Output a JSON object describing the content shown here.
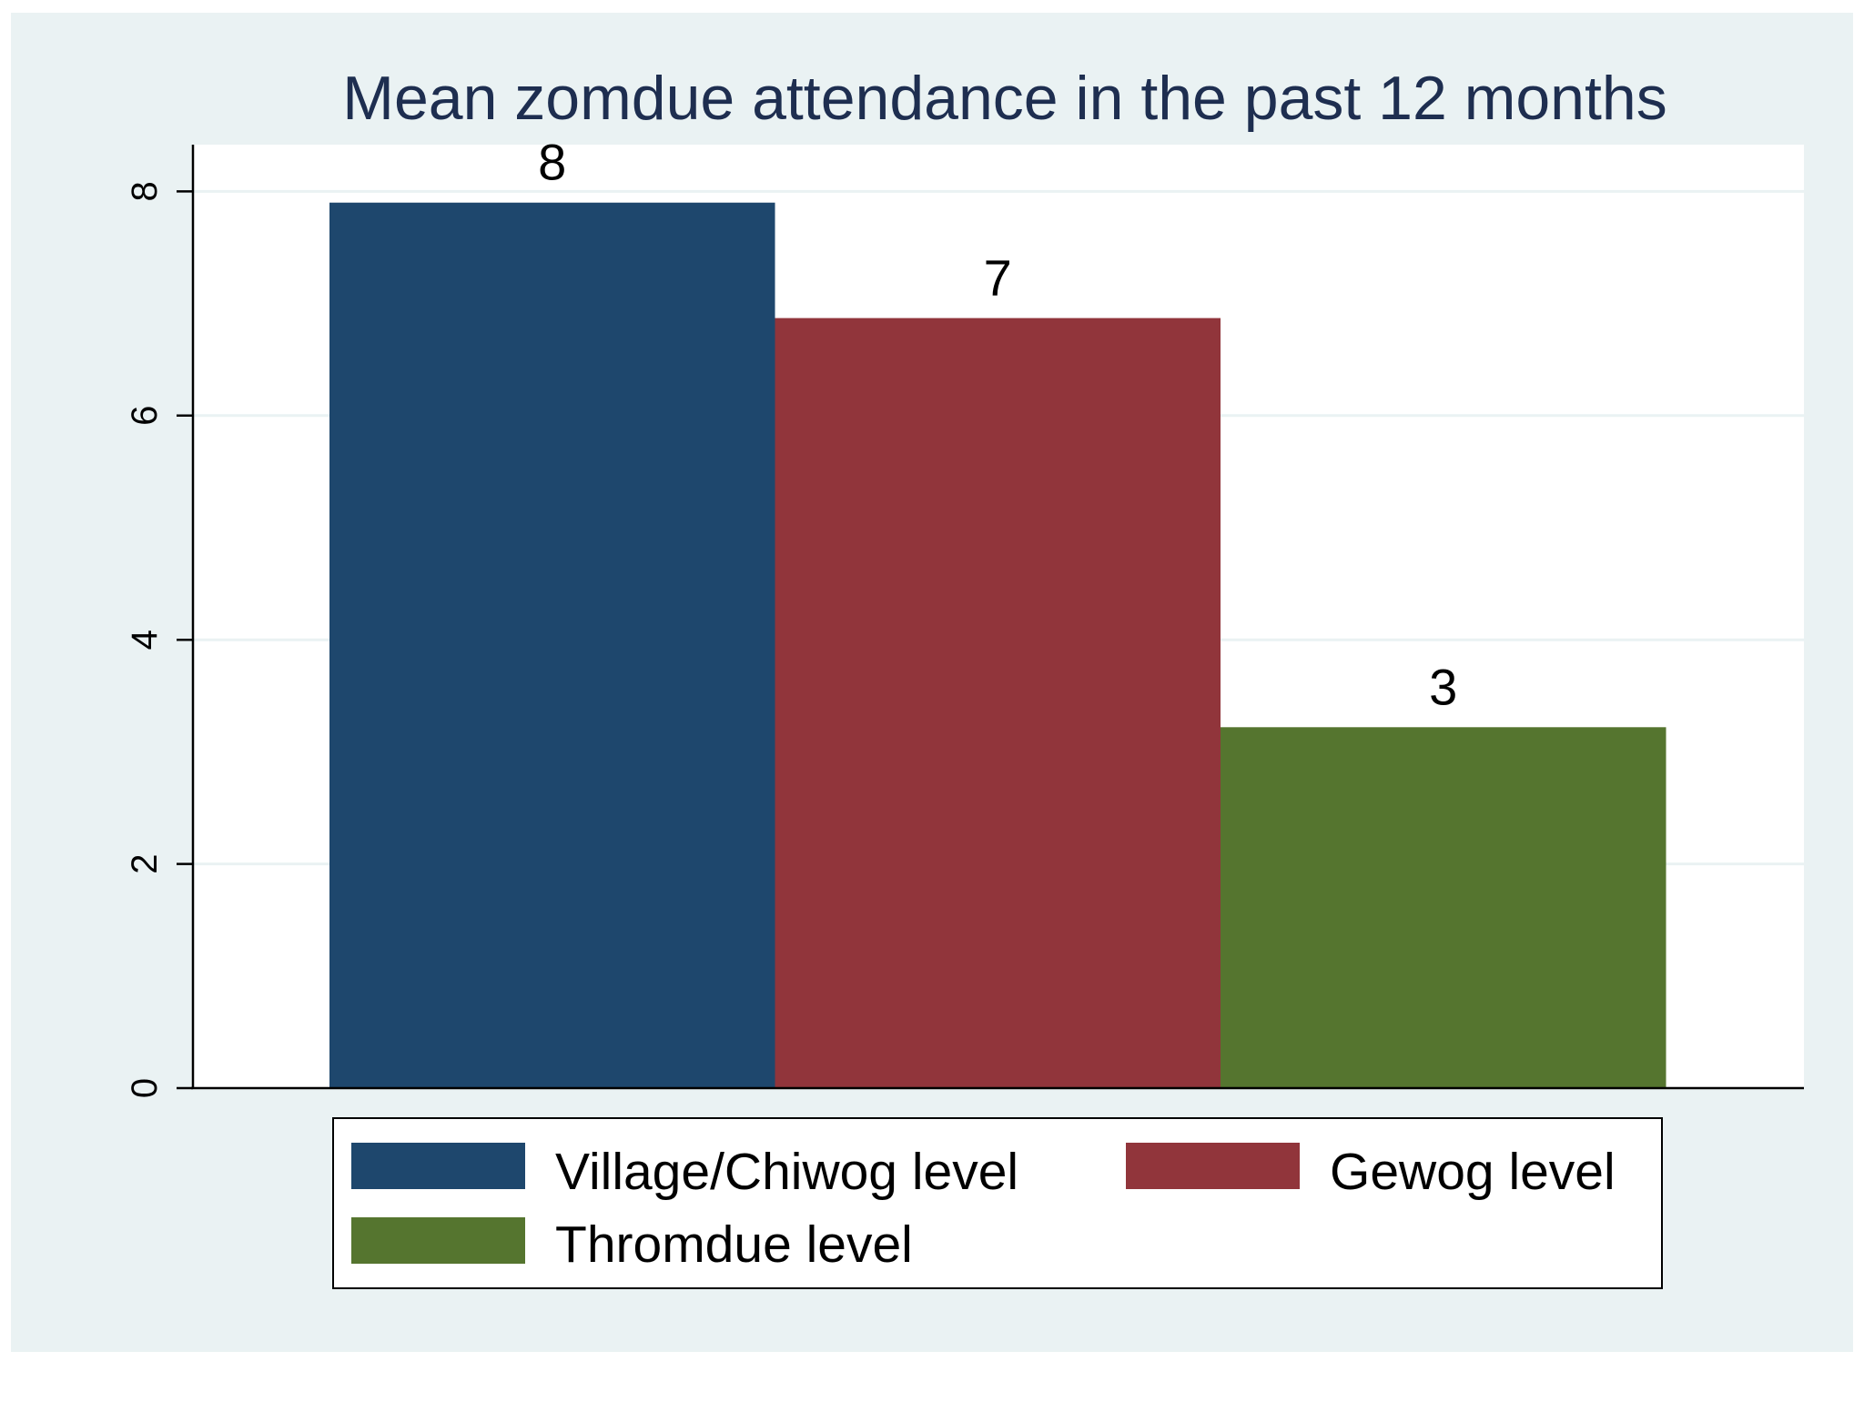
{
  "chart_data": {
    "type": "bar",
    "title": "Mean zomdue attendance in the past 12 months",
    "xlabel": "",
    "ylabel": "",
    "ylim": [
      0,
      8.2
    ],
    "yticks": [
      0,
      2,
      4,
      6,
      8
    ],
    "grid": true,
    "legend_position": "bottom",
    "series": [
      {
        "name": "Village/Chiwog level",
        "value": 7.9,
        "label": "8",
        "color": "#1e476d"
      },
      {
        "name": "Gewog level",
        "value": 6.87,
        "label": "7",
        "color": "#91353b"
      },
      {
        "name": "Thromdue level",
        "value": 3.22,
        "label": "3",
        "color": "#55752f"
      }
    ]
  },
  "colors": {
    "outer_background": "#eaf2f3",
    "plot_background": "#ffffff",
    "gridline": "#eaf2f3",
    "title": "#1e2e50",
    "axis": "#000000"
  }
}
